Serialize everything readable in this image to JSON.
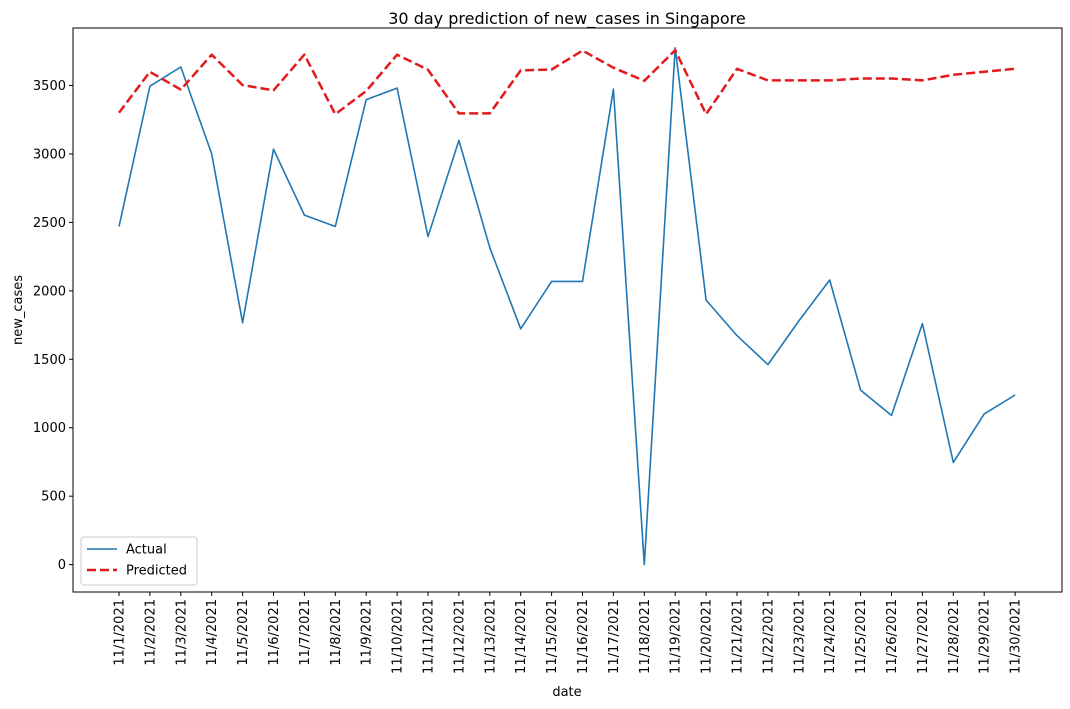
{
  "chart_data": {
    "type": "line",
    "title": "30 day prediction of new_cases in Singapore",
    "xlabel": "date",
    "ylabel": "new_cases",
    "ylim": [
      -200,
      3920
    ],
    "yticks": [
      0,
      500,
      1000,
      1500,
      2000,
      2500,
      3000,
      3500
    ],
    "grid": false,
    "legend_position": "lower-left",
    "x": [
      "11/1/2021",
      "11/2/2021",
      "11/3/2021",
      "11/4/2021",
      "11/5/2021",
      "11/6/2021",
      "11/7/2021",
      "11/8/2021",
      "11/9/2021",
      "11/10/2021",
      "11/11/2021",
      "11/12/2021",
      "11/13/2021",
      "11/14/2021",
      "11/15/2021",
      "11/16/2021",
      "11/17/2021",
      "11/18/2021",
      "11/19/2021",
      "11/20/2021",
      "11/21/2021",
      "11/22/2021",
      "11/23/2021",
      "11/24/2021",
      "11/25/2021",
      "11/26/2021",
      "11/27/2021",
      "11/28/2021",
      "11/29/2021",
      "11/30/2021"
    ],
    "series": [
      {
        "name": "Actual",
        "color": "#1f77b4",
        "style": "solid",
        "values": [
          2470,
          3495,
          3635,
          3000,
          1767,
          3035,
          2553,
          2470,
          3397,
          3481,
          2396,
          3099,
          2315,
          1723,
          2069,
          2069,
          3473,
          0,
          3775,
          1932,
          1673,
          1461,
          1780,
          2079,
          1275,
          1090,
          1761,
          747,
          1101,
          1239
        ]
      },
      {
        "name": "Predicted",
        "color": "#e31a1c",
        "style": "dashed",
        "values": [
          3301,
          3600,
          3470,
          3725,
          3503,
          3465,
          3726,
          3290,
          3460,
          3725,
          3615,
          3296,
          3296,
          3610,
          3617,
          3755,
          3630,
          3534,
          3758,
          3290,
          3622,
          3537,
          3537,
          3537,
          3551,
          3551,
          3537,
          3578,
          3600,
          3622
        ]
      }
    ]
  }
}
